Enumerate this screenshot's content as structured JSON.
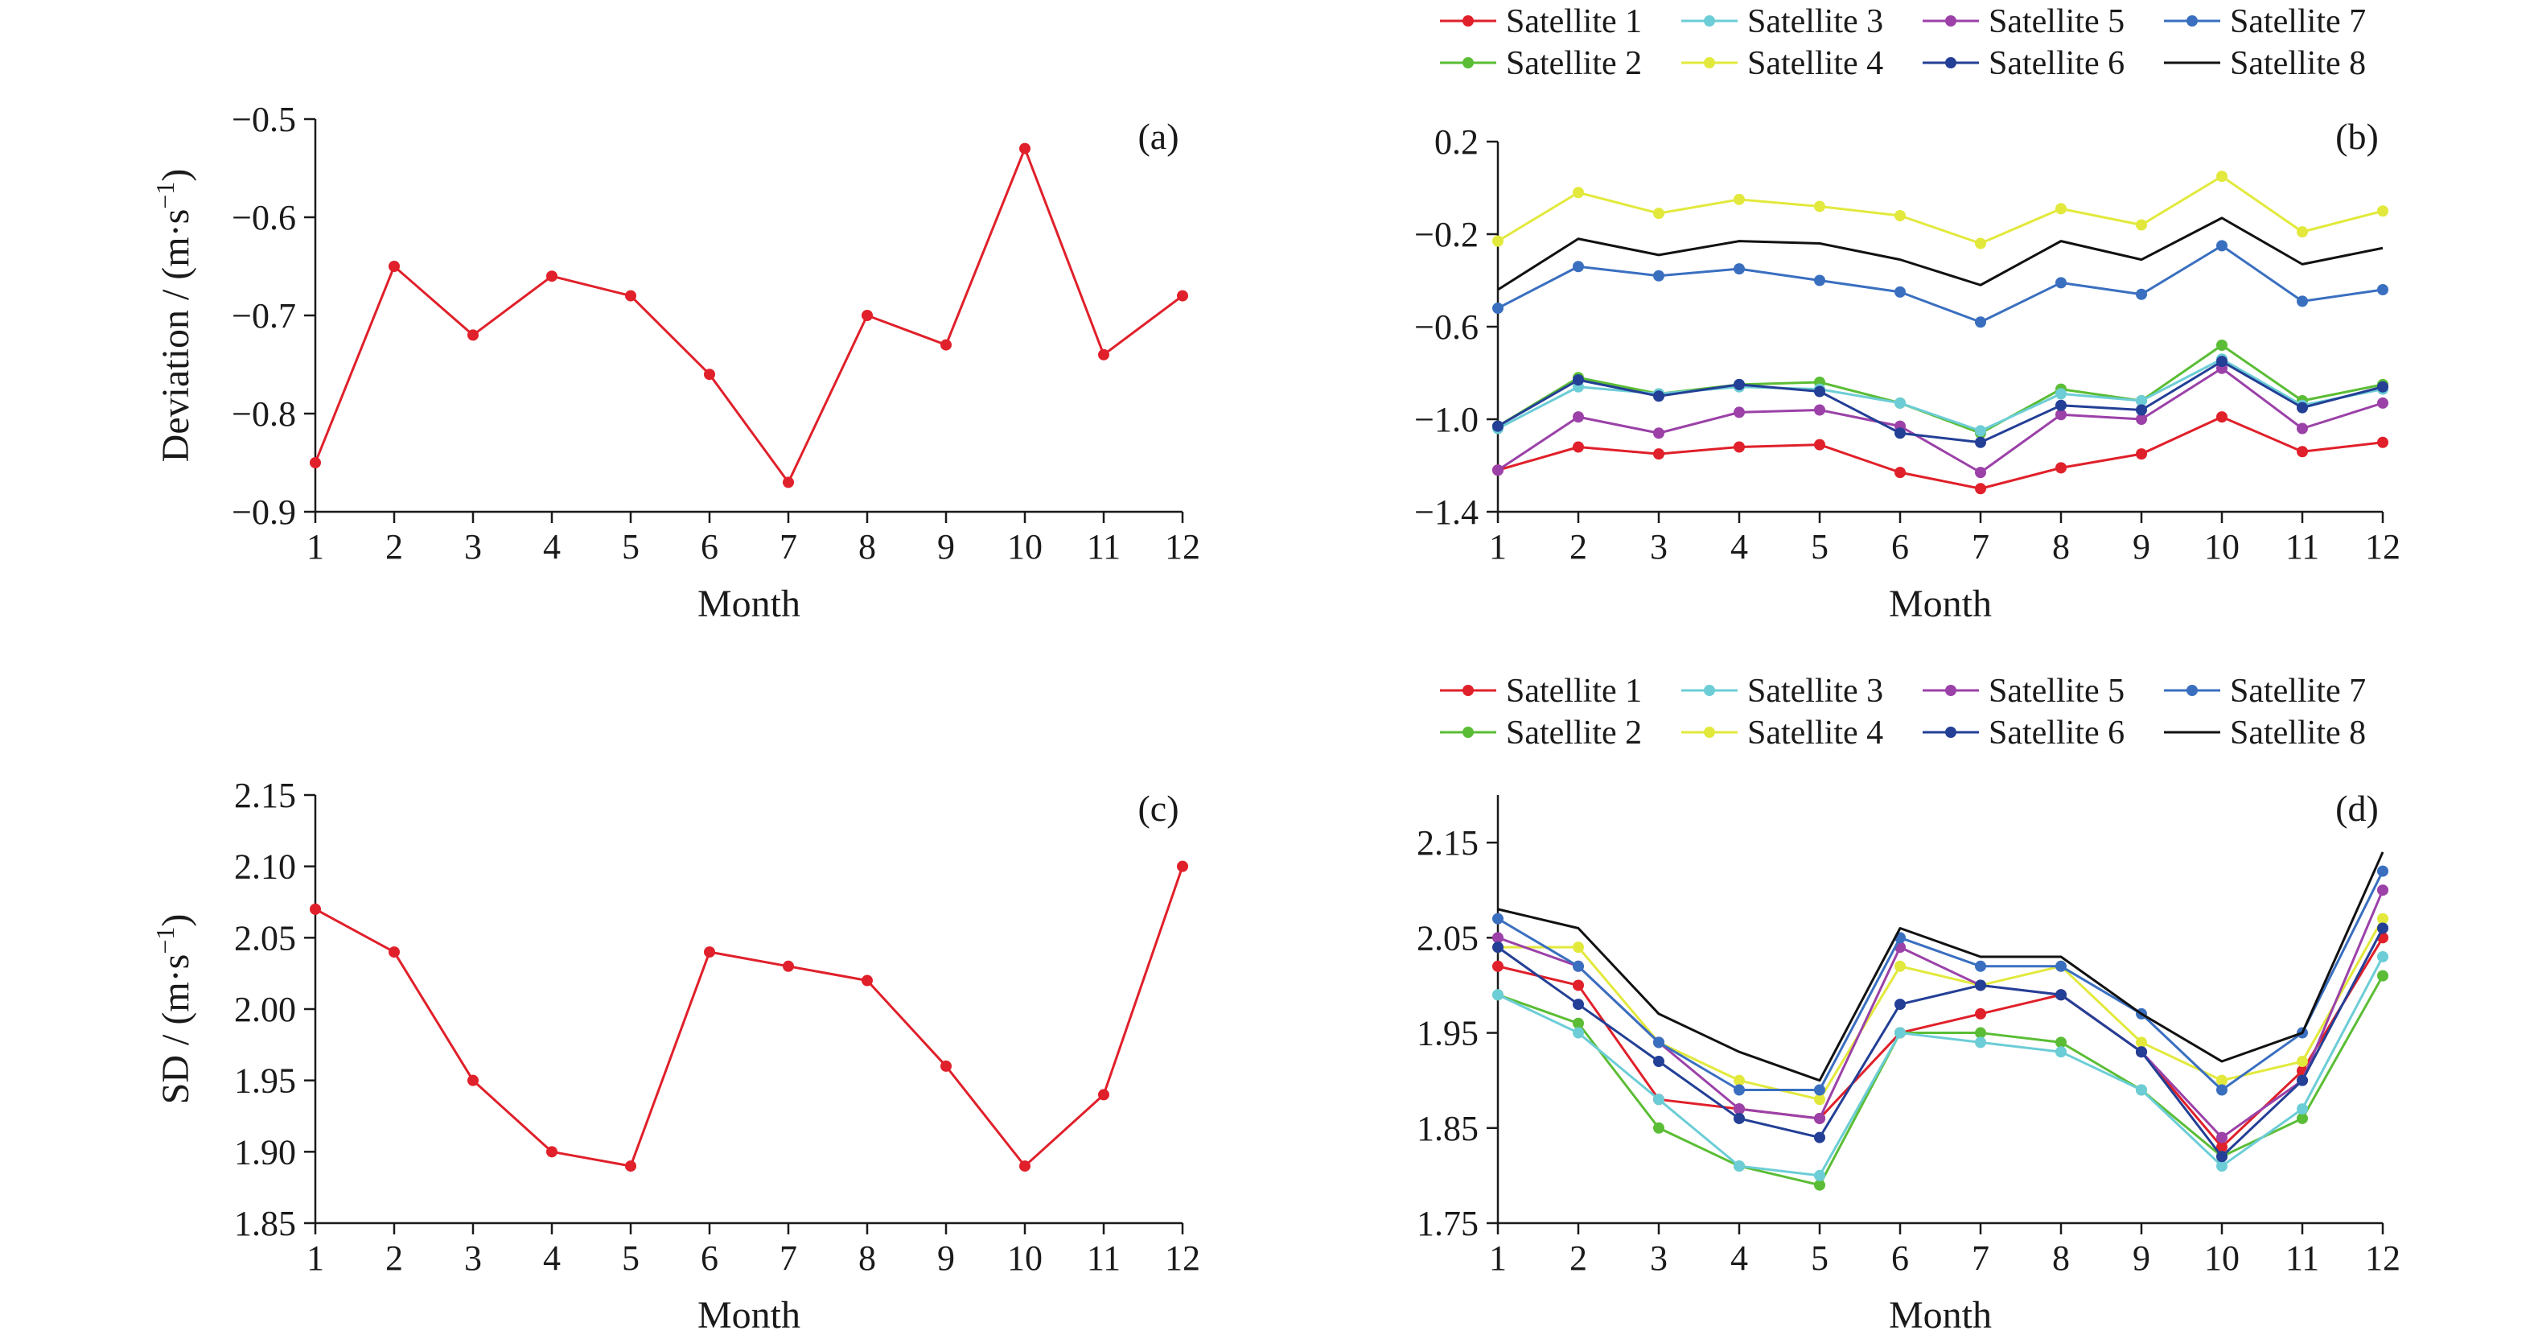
{
  "figure": {
    "month_label": "Month"
  },
  "chart_data": [
    {
      "id": "a",
      "type": "line",
      "panel_tag": "(a)",
      "xlabel": "Month",
      "ylabel_main": "Deviation / (m·s",
      "ylabel_sup": "−1",
      "ylabel_end": ")",
      "x": [
        1,
        2,
        3,
        4,
        5,
        6,
        7,
        8,
        9,
        10,
        11,
        12
      ],
      "xlim": [
        1,
        12
      ],
      "ylim": [
        -0.9,
        -0.5
      ],
      "yticks": [
        -0.9,
        -0.8,
        -0.7,
        -0.6,
        -0.5
      ],
      "ytick_labels": [
        "−0.9",
        "−0.8",
        "−0.7",
        "−0.6",
        "−0.5"
      ],
      "grid": false,
      "legend": false,
      "series": [
        {
          "color": "#e0202a",
          "values": [
            -0.85,
            -0.65,
            -0.72,
            -0.66,
            -0.68,
            -0.76,
            -0.87,
            -0.7,
            -0.73,
            -0.53,
            -0.74,
            -0.68
          ]
        }
      ]
    },
    {
      "id": "b",
      "type": "line",
      "panel_tag": "(b)",
      "xlabel": "Month",
      "x": [
        1,
        2,
        3,
        4,
        5,
        6,
        7,
        8,
        9,
        10,
        11,
        12
      ],
      "xlim": [
        1,
        12
      ],
      "ylim": [
        -1.4,
        0.2
      ],
      "yticks": [
        -1.4,
        -1.0,
        -0.6,
        -0.2,
        0.2
      ],
      "ytick_labels": [
        "−1.4",
        "−1.0",
        "−0.6",
        "−0.2",
        "0.2"
      ],
      "grid": false,
      "legend": "top",
      "series": [
        {
          "name": "Satellite 1",
          "color": "#e0202a",
          "marker": true,
          "values": [
            -1.22,
            -1.12,
            -1.15,
            -1.12,
            -1.11,
            -1.23,
            -1.3,
            -1.21,
            -1.15,
            -0.99,
            -1.14,
            -1.1
          ]
        },
        {
          "name": "Satellite 2",
          "color": "#5bbd35",
          "marker": true,
          "values": [
            -1.03,
            -0.82,
            -0.89,
            -0.85,
            -0.84,
            -0.93,
            -1.06,
            -0.87,
            -0.92,
            -0.68,
            -0.92,
            -0.85
          ]
        },
        {
          "name": "Satellite 3",
          "color": "#6ccdd6",
          "marker": true,
          "values": [
            -1.04,
            -0.86,
            -0.89,
            -0.86,
            -0.87,
            -0.93,
            -1.05,
            -0.89,
            -0.92,
            -0.74,
            -0.94,
            -0.87
          ]
        },
        {
          "name": "Satellite 4",
          "color": "#e2e93c",
          "marker": true,
          "values": [
            -0.23,
            -0.02,
            -0.11,
            -0.05,
            -0.08,
            -0.12,
            -0.24,
            -0.09,
            -0.16,
            0.05,
            -0.19,
            -0.1
          ]
        },
        {
          "name": "Satellite 5",
          "color": "#9b41a8",
          "marker": true,
          "values": [
            -1.22,
            -0.99,
            -1.06,
            -0.97,
            -0.96,
            -1.03,
            -1.23,
            -0.98,
            -1.0,
            -0.78,
            -1.04,
            -0.93
          ]
        },
        {
          "name": "Satellite 6",
          "color": "#233f96",
          "marker": true,
          "values": [
            -1.03,
            -0.83,
            -0.9,
            -0.85,
            -0.88,
            -1.06,
            -1.1,
            -0.94,
            -0.96,
            -0.75,
            -0.95,
            -0.86
          ]
        },
        {
          "name": "Satellite 7",
          "color": "#3a6fc0",
          "marker": true,
          "values": [
            -0.52,
            -0.34,
            -0.38,
            -0.35,
            -0.4,
            -0.45,
            -0.58,
            -0.41,
            -0.46,
            -0.25,
            -0.49,
            -0.44
          ]
        },
        {
          "name": "Satellite 8",
          "color": "#111111",
          "marker": false,
          "values": [
            -0.44,
            -0.22,
            -0.29,
            -0.23,
            -0.24,
            -0.31,
            -0.42,
            -0.23,
            -0.31,
            -0.13,
            -0.33,
            -0.26
          ]
        }
      ]
    },
    {
      "id": "c",
      "type": "line",
      "panel_tag": "(c)",
      "xlabel": "Month",
      "ylabel_main": "SD / (m·s",
      "ylabel_sup": "−1",
      "ylabel_end": ")",
      "x": [
        1,
        2,
        3,
        4,
        5,
        6,
        7,
        8,
        9,
        10,
        11,
        12
      ],
      "xlim": [
        1,
        12
      ],
      "ylim": [
        1.85,
        2.15
      ],
      "yticks": [
        1.85,
        1.9,
        1.95,
        2.0,
        2.05,
        2.1,
        2.15
      ],
      "ytick_labels": [
        "1.85",
        "1.90",
        "1.95",
        "2.00",
        "2.05",
        "2.10",
        "2.15"
      ],
      "grid": false,
      "legend": false,
      "series": [
        {
          "color": "#e0202a",
          "values": [
            2.07,
            2.04,
            1.95,
            1.9,
            1.89,
            2.04,
            2.03,
            2.02,
            1.96,
            1.89,
            1.94,
            2.1
          ]
        }
      ]
    },
    {
      "id": "d",
      "type": "line",
      "panel_tag": "(d)",
      "xlabel": "Month",
      "x": [
        1,
        2,
        3,
        4,
        5,
        6,
        7,
        8,
        9,
        10,
        11,
        12
      ],
      "xlim": [
        1,
        12
      ],
      "ylim": [
        1.75,
        2.2
      ],
      "yticks": [
        1.75,
        1.85,
        1.95,
        2.05,
        2.15
      ],
      "ytick_labels": [
        "1.75",
        "1.85",
        "1.95",
        "2.05",
        "2.15"
      ],
      "grid": false,
      "legend": "top",
      "series": [
        {
          "name": "Satellite 1",
          "color": "#e0202a",
          "marker": true,
          "values": [
            2.02,
            2.0,
            1.88,
            1.87,
            1.86,
            1.95,
            1.97,
            1.99,
            1.93,
            1.83,
            1.91,
            2.05
          ]
        },
        {
          "name": "Satellite 2",
          "color": "#5bbd35",
          "marker": true,
          "values": [
            1.99,
            1.96,
            1.85,
            1.81,
            1.79,
            1.95,
            1.95,
            1.94,
            1.89,
            1.82,
            1.86,
            2.01
          ]
        },
        {
          "name": "Satellite 3",
          "color": "#6ccdd6",
          "marker": true,
          "values": [
            1.99,
            1.95,
            1.88,
            1.81,
            1.8,
            1.95,
            1.94,
            1.93,
            1.89,
            1.81,
            1.87,
            2.03
          ]
        },
        {
          "name": "Satellite 4",
          "color": "#e2e93c",
          "marker": true,
          "values": [
            2.04,
            2.04,
            1.94,
            1.9,
            1.88,
            2.02,
            2.0,
            2.02,
            1.94,
            1.9,
            1.92,
            2.07
          ]
        },
        {
          "name": "Satellite 5",
          "color": "#9b41a8",
          "marker": true,
          "values": [
            2.05,
            2.02,
            1.94,
            1.87,
            1.86,
            2.04,
            2.0,
            1.99,
            1.93,
            1.84,
            1.9,
            2.1
          ]
        },
        {
          "name": "Satellite 6",
          "color": "#233f96",
          "marker": true,
          "values": [
            2.04,
            1.98,
            1.92,
            1.86,
            1.84,
            1.98,
            2.0,
            1.99,
            1.93,
            1.82,
            1.9,
            2.06
          ]
        },
        {
          "name": "Satellite 7",
          "color": "#3a6fc0",
          "marker": true,
          "values": [
            2.07,
            2.02,
            1.94,
            1.89,
            1.89,
            2.05,
            2.02,
            2.02,
            1.97,
            1.89,
            1.95,
            2.12
          ]
        },
        {
          "name": "Satellite 8",
          "color": "#111111",
          "marker": false,
          "values": [
            2.08,
            2.06,
            1.97,
            1.93,
            1.9,
            2.06,
            2.03,
            2.03,
            1.97,
            1.92,
            1.95,
            2.14
          ]
        }
      ]
    }
  ]
}
